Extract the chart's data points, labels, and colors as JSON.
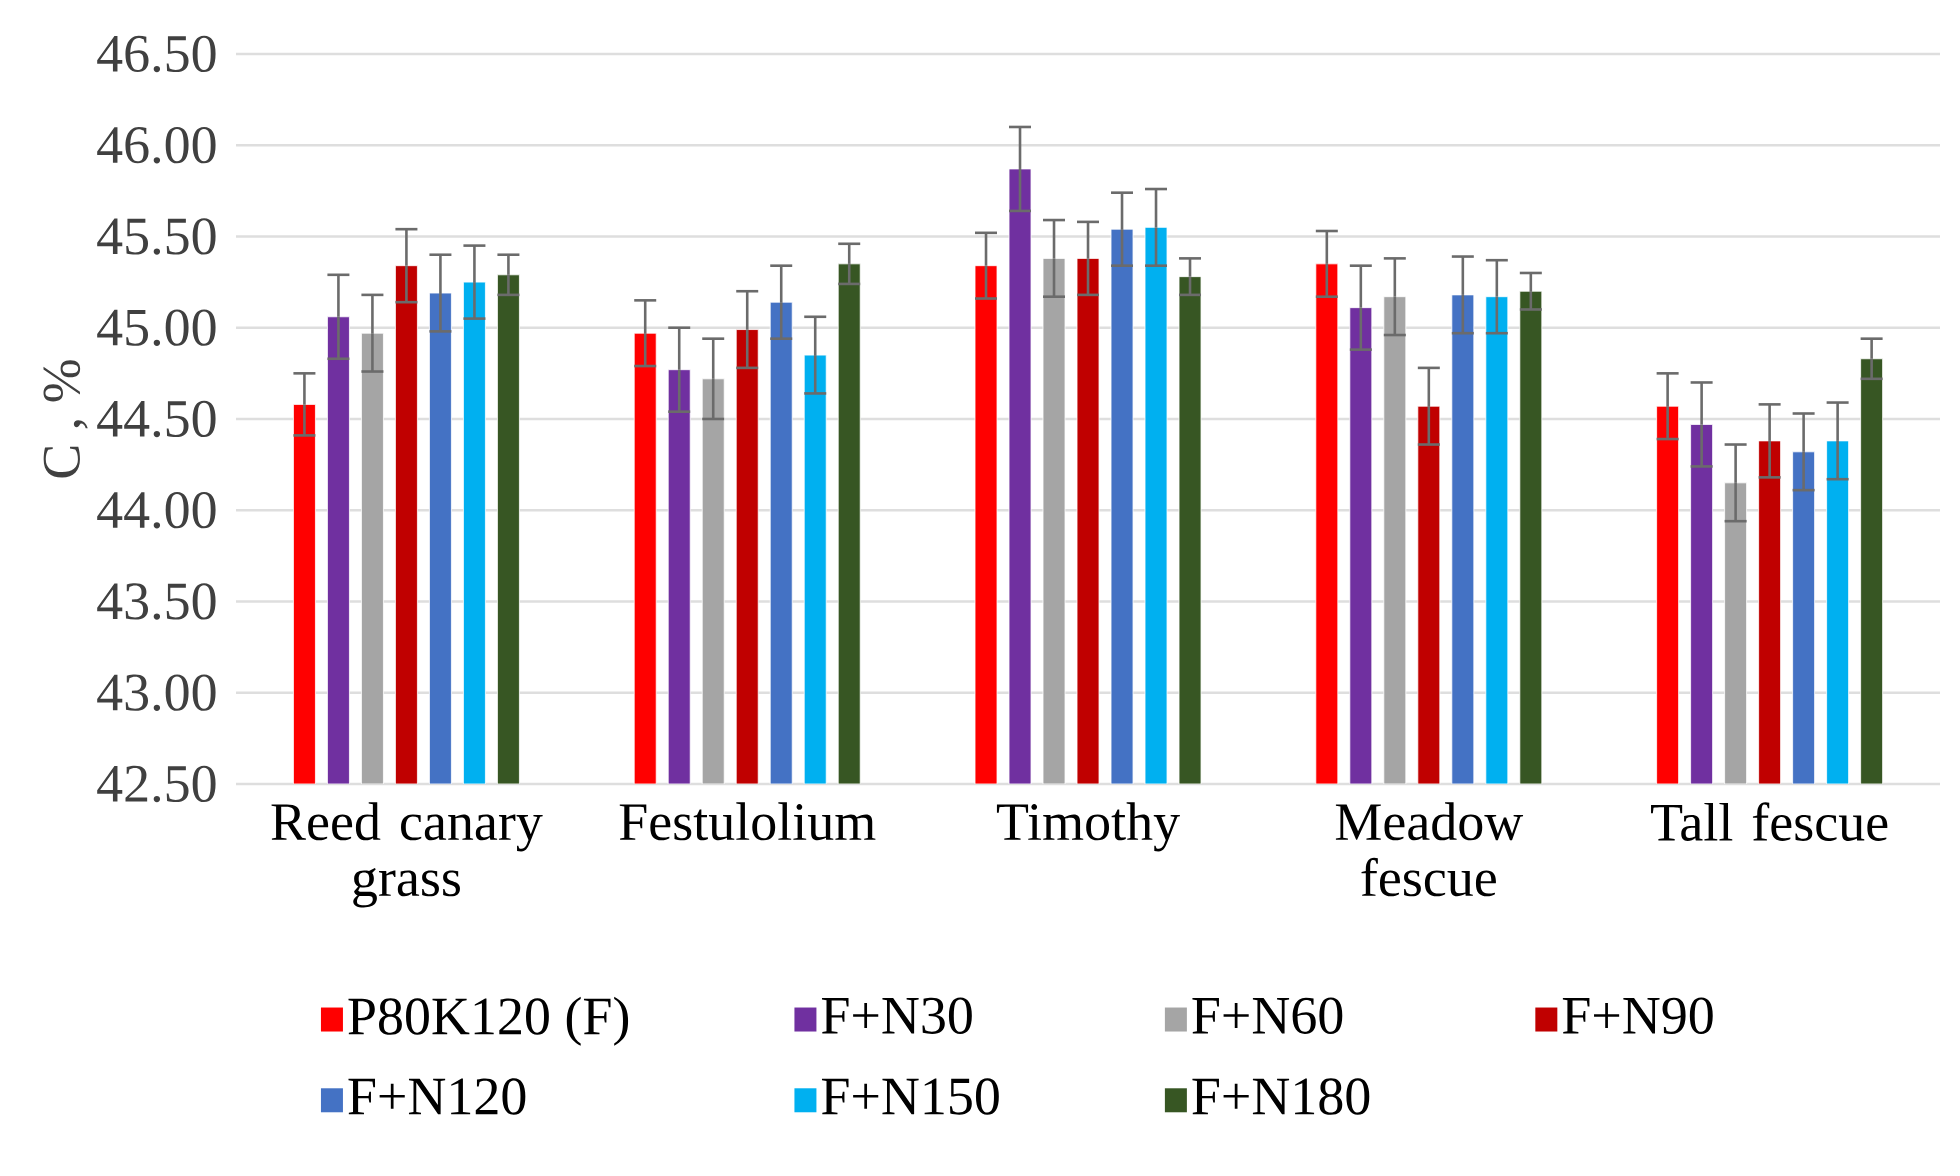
{
  "chart_data": {
    "type": "bar",
    "ylabel": "C , %",
    "categories": [
      "Reed canary grass",
      "Festulolium",
      "Timothy",
      "Meadow fescue",
      "Tall fescue"
    ],
    "series": [
      {
        "name": "P80K120 (F)",
        "color": "#ff0000",
        "values": [
          44.58,
          44.97,
          45.34,
          45.35,
          44.57
        ],
        "errors": [
          0.17,
          0.18,
          0.18,
          0.18,
          0.18
        ]
      },
      {
        "name": "F+N30",
        "color": "#7030a0",
        "values": [
          45.06,
          44.77,
          45.87,
          45.11,
          44.47
        ],
        "errors": [
          0.23,
          0.23,
          0.23,
          0.23,
          0.23
        ]
      },
      {
        "name": "F+N60",
        "color": "#a5a5a5",
        "values": [
          44.97,
          44.72,
          45.38,
          45.17,
          44.15
        ],
        "errors": [
          0.21,
          0.22,
          0.21,
          0.21,
          0.21
        ]
      },
      {
        "name": "F+N90",
        "color": "#c00000",
        "values": [
          45.34,
          44.99,
          45.38,
          44.57,
          44.38
        ],
        "errors": [
          0.2,
          0.21,
          0.2,
          0.21,
          0.2
        ]
      },
      {
        "name": "F+N120",
        "color": "#4472c4",
        "values": [
          45.19,
          45.14,
          45.54,
          45.18,
          44.32
        ],
        "errors": [
          0.21,
          0.2,
          0.2,
          0.21,
          0.21
        ]
      },
      {
        "name": "F+N150",
        "color": "#00b0f0",
        "values": [
          45.25,
          44.85,
          45.55,
          45.17,
          44.38
        ],
        "errors": [
          0.2,
          0.21,
          0.21,
          0.2,
          0.21
        ]
      },
      {
        "name": "F+N180",
        "color": "#375623",
        "values": [
          45.29,
          45.35,
          45.28,
          45.2,
          44.83
        ],
        "errors": [
          0.11,
          0.11,
          0.1,
          0.1,
          0.11
        ]
      }
    ],
    "ylim": [
      42.5,
      46.5
    ],
    "yticks": [
      {
        "value": 42.5,
        "label": "42.50"
      },
      {
        "value": 43.0,
        "label": "43.00"
      },
      {
        "value": 43.5,
        "label": "43.50"
      },
      {
        "value": 44.0,
        "label": "44.00"
      },
      {
        "value": 44.5,
        "label": "44.50"
      },
      {
        "value": 45.0,
        "label": "45.00"
      },
      {
        "value": 45.5,
        "label": "45.50"
      },
      {
        "value": 46.0,
        "label": "46.00"
      },
      {
        "value": 46.5,
        "label": "46.50"
      }
    ],
    "grid": "y",
    "legend": "bottom"
  }
}
